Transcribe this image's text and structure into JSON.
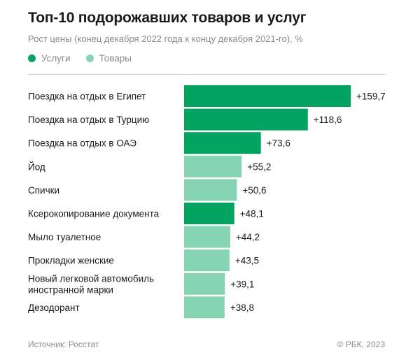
{
  "title": "Топ-10 подорожавших товаров и услуг",
  "subtitle": "Рост цены (конец декабря 2022 года к концу декабря 2021-го), %",
  "legend": [
    {
      "label": "Услуги",
      "color": "#00a35f"
    },
    {
      "label": "Товары",
      "color": "#86d4b1"
    }
  ],
  "chart_data": {
    "type": "bar",
    "orientation": "horizontal",
    "categories": [
      "Поездка на отдых в Египет",
      "Поездка на отдых в Турцию",
      "Поездка на отдых в ОАЭ",
      "Йод",
      "Спички",
      "Ксерокопирование документа",
      "Мыло туалетное",
      "Прокладки женские",
      "Новый легковой автомобиль иностранной марки",
      "Дезодорант"
    ],
    "category_lines": [
      [
        "Поездка на отдых в Египет"
      ],
      [
        "Поездка на отдых в Турцию"
      ],
      [
        "Поездка на отдых в ОАЭ"
      ],
      [
        "Йод"
      ],
      [
        "Спички"
      ],
      [
        "Ксерокопирование документа"
      ],
      [
        "Мыло туалетное"
      ],
      [
        "Прокладки женские"
      ],
      [
        "Новый легковой автомобиль",
        "иностранной марки"
      ],
      [
        "Дезодорант"
      ]
    ],
    "values": [
      159.7,
      118.6,
      73.6,
      55.2,
      50.6,
      48.1,
      44.2,
      43.5,
      39.1,
      38.8
    ],
    "value_labels": [
      "+159,7",
      "+118,6",
      "+73,6",
      "+55,2",
      "+50,6",
      "+48,1",
      "+44,2",
      "+43,5",
      "+39,1",
      "+38,8"
    ],
    "groups": [
      "Услуги",
      "Услуги",
      "Услуги",
      "Товары",
      "Товары",
      "Услуги",
      "Товары",
      "Товары",
      "Товары",
      "Товары"
    ],
    "xlim": [
      0,
      159.7
    ],
    "grid": false,
    "legend_position": "top-left"
  },
  "footer": {
    "source": "Источник: Росстат",
    "copyright": "© РБК, 2023"
  }
}
